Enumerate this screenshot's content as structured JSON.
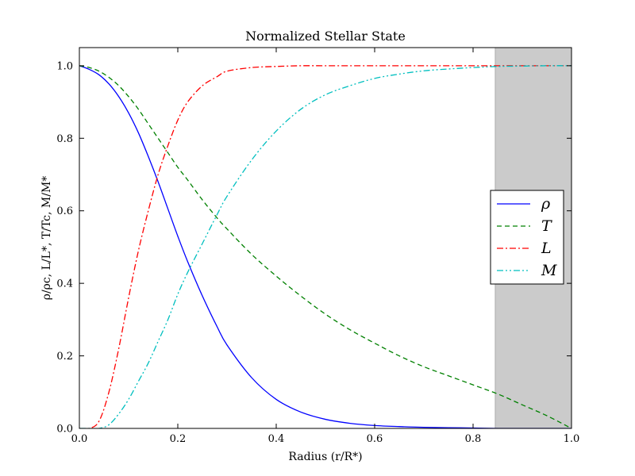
{
  "chart_data": {
    "type": "line",
    "title": "Normalized Stellar State",
    "xlabel": "Radius (r/R*)",
    "ylabel": "ρ/ρc, L/L*, T/Tc, M/M*",
    "xlim": [
      0.0,
      1.0
    ],
    "ylim": [
      0.0,
      1.05
    ],
    "xticks": [
      "0.0",
      "0.2",
      "0.4",
      "0.6",
      "0.8",
      "1.0"
    ],
    "yticks": [
      "0.0",
      "0.2",
      "0.4",
      "0.6",
      "0.8",
      "1.0"
    ],
    "grid": false,
    "legend_position": "center-right",
    "shaded_region": {
      "x_start": 0.845,
      "x_end": 1.0,
      "color": "#c8c8c8"
    },
    "x": [
      0.0,
      0.02,
      0.04,
      0.06,
      0.08,
      0.1,
      0.12,
      0.14,
      0.16,
      0.18,
      0.2,
      0.22,
      0.25,
      0.28,
      0.3,
      0.35,
      0.4,
      0.45,
      0.5,
      0.55,
      0.6,
      0.65,
      0.7,
      0.75,
      0.8,
      0.85,
      0.9,
      0.95,
      1.0
    ],
    "series": [
      {
        "name": "ρ",
        "color": "#0000ff",
        "dash": "solid",
        "values": [
          1.0,
          0.99,
          0.975,
          0.95,
          0.915,
          0.87,
          0.815,
          0.75,
          0.68,
          0.605,
          0.53,
          0.46,
          0.365,
          0.28,
          0.23,
          0.14,
          0.08,
          0.045,
          0.025,
          0.014,
          0.008,
          0.005,
          0.003,
          0.002,
          0.001,
          0.0,
          0.0,
          0.0,
          0.0
        ]
      },
      {
        "name": "T",
        "color": "#008000",
        "dash": "dashed",
        "values": [
          1.0,
          0.995,
          0.985,
          0.968,
          0.945,
          0.915,
          0.88,
          0.84,
          0.8,
          0.76,
          0.72,
          0.685,
          0.63,
          0.58,
          0.55,
          0.48,
          0.42,
          0.365,
          0.315,
          0.272,
          0.235,
          0.2,
          0.17,
          0.145,
          0.12,
          0.095,
          0.065,
          0.035,
          0.0
        ]
      },
      {
        "name": "L",
        "color": "#ff0000",
        "dash": "dashdot",
        "values": [
          0.0,
          0.0,
          0.02,
          0.1,
          0.22,
          0.36,
          0.49,
          0.6,
          0.7,
          0.78,
          0.85,
          0.9,
          0.945,
          0.97,
          0.985,
          0.995,
          0.998,
          1.0,
          1.0,
          1.0,
          1.0,
          1.0,
          1.0,
          1.0,
          1.0,
          1.0,
          1.0,
          1.0,
          1.0
        ]
      },
      {
        "name": "M",
        "color": "#00bfbf",
        "dash": "dashdotdot",
        "values": [
          0.0,
          0.0,
          0.0,
          0.01,
          0.04,
          0.08,
          0.13,
          0.18,
          0.24,
          0.3,
          0.37,
          0.43,
          0.51,
          0.59,
          0.64,
          0.74,
          0.82,
          0.88,
          0.92,
          0.945,
          0.965,
          0.977,
          0.986,
          0.991,
          0.995,
          0.998,
          0.999,
          1.0,
          1.0
        ]
      }
    ]
  }
}
